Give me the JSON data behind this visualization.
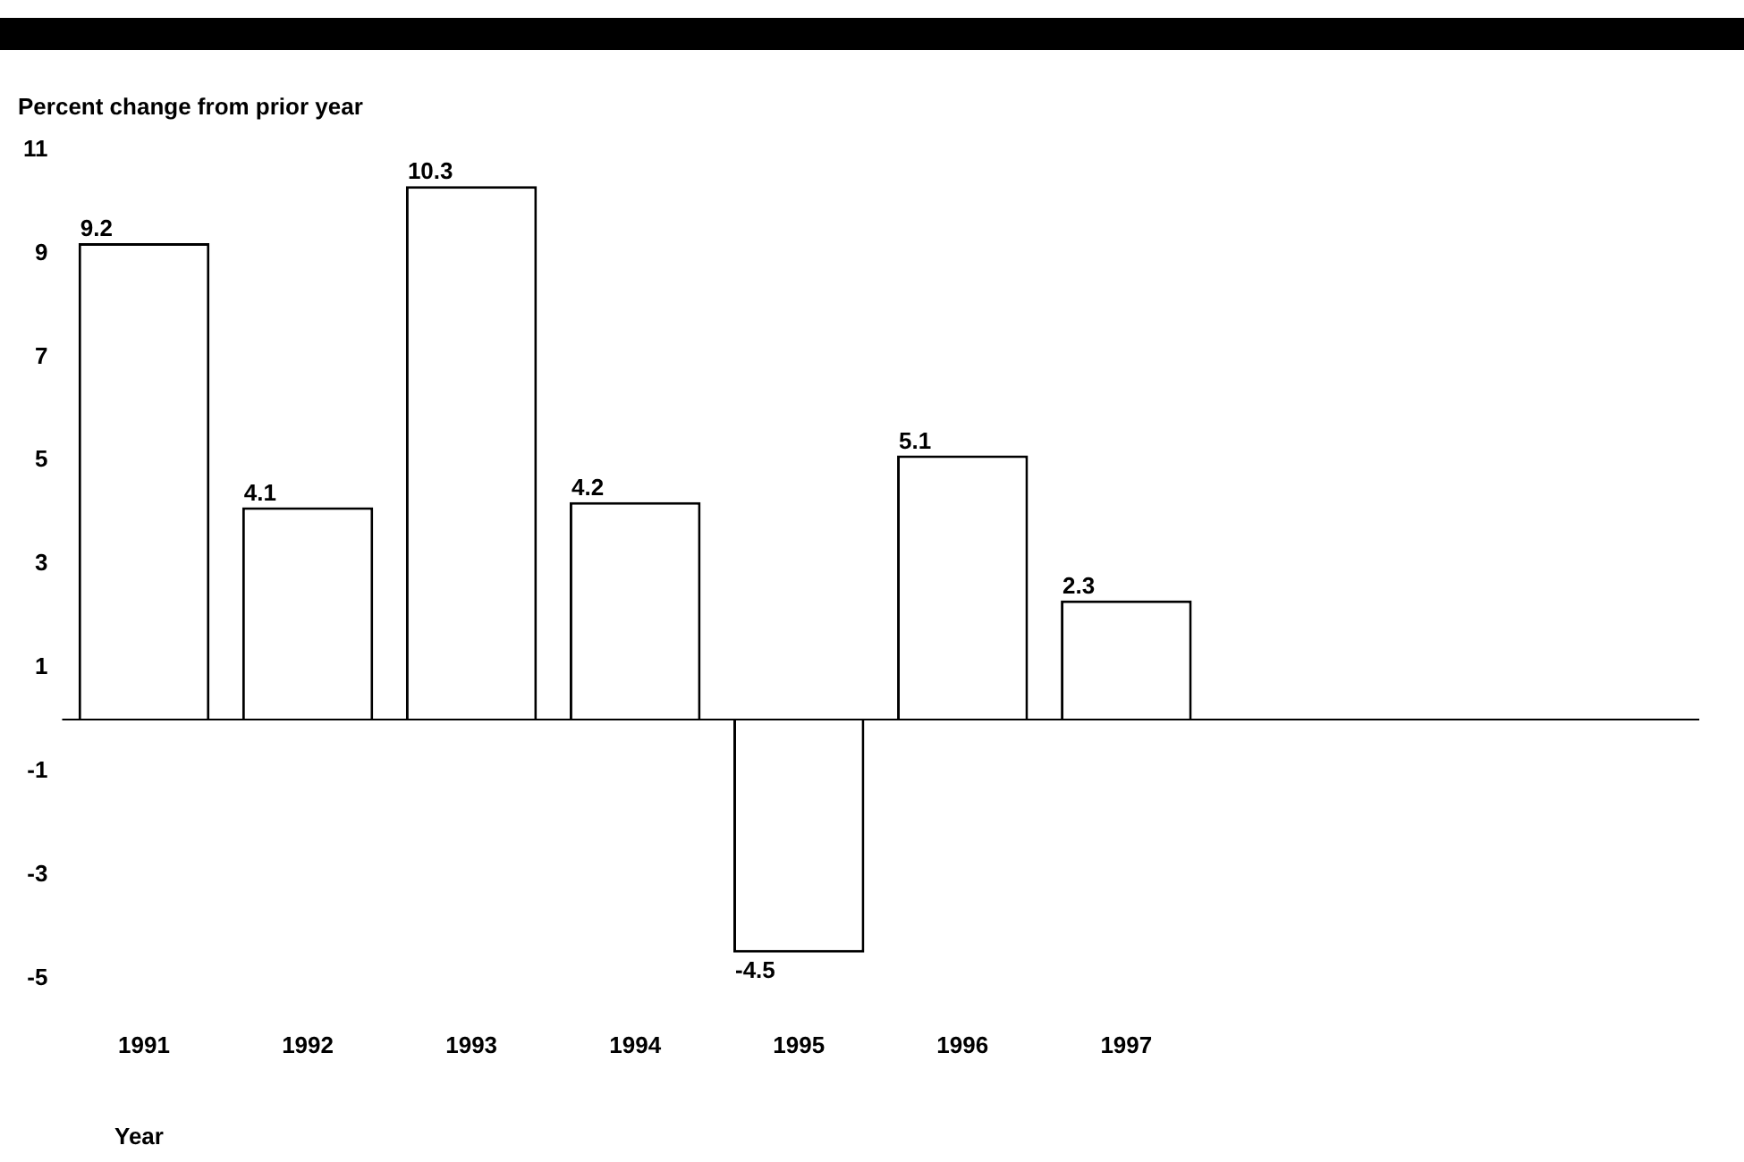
{
  "chart_data": {
    "type": "bar",
    "ylabel": "Percent change from prior year",
    "xlabel": "Year",
    "categories": [
      "1991",
      "1992",
      "1993",
      "1994",
      "1995",
      "1996",
      "1997",
      null,
      null,
      null
    ],
    "values": [
      9.2,
      4.1,
      10.3,
      4.2,
      -4.5,
      5.1,
      2.3,
      null,
      null,
      null
    ],
    "color": "#ffffff",
    "ylim": [
      -5,
      11
    ],
    "yticks": [
      -5,
      -3,
      -1,
      1,
      3,
      5,
      7,
      9,
      11
    ],
    "grid": false,
    "data_labels": true,
    "ref_lines": [
      {
        "axis": "y",
        "value": 0,
        "color": "#000000"
      }
    ]
  }
}
